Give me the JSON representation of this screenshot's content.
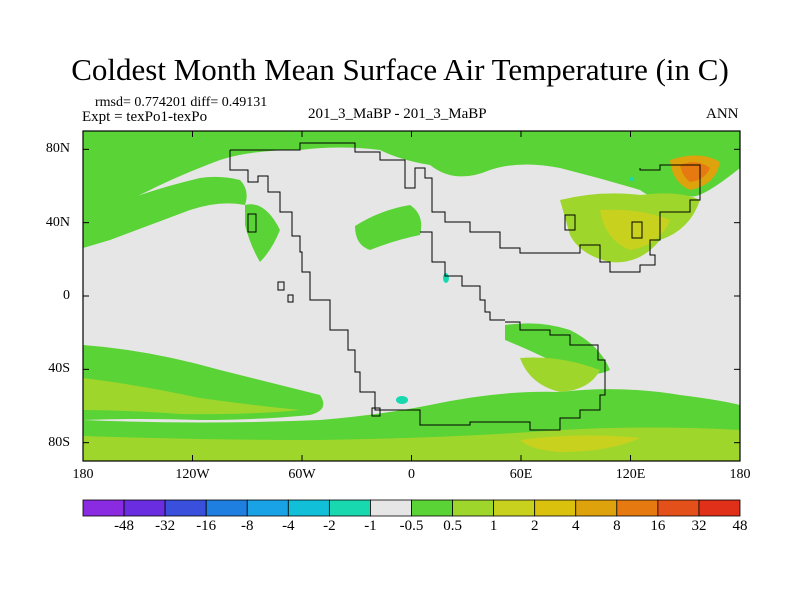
{
  "title": "Coldest Month Mean Surface Air Temperature (in C)",
  "stats": "rmsd= 0.774201 diff= 0.49131",
  "expt": "Expt = texPo1-texPo",
  "comparison": "201_3_MaBP - 201_3_MaBP",
  "season": "ANN",
  "map": {
    "x_ticks": [
      "180",
      "120W",
      "60W",
      "0",
      "60E",
      "120E",
      "180"
    ],
    "x_tick_lon": [
      -180,
      -120,
      -60,
      0,
      60,
      120,
      180
    ],
    "y_ticks": [
      "80N",
      "40N",
      "0",
      "40S",
      "80S"
    ],
    "y_tick_lat": [
      80,
      40,
      0,
      -40,
      -80
    ]
  },
  "colorbar": {
    "colors": [
      "#8a2be2",
      "#6a2ee0",
      "#3a50dc",
      "#1f7fe0",
      "#1aa2e6",
      "#12bfd8",
      "#18d8b0",
      "#e6e6e6",
      "#5ad336",
      "#9ed62c",
      "#c8d21e",
      "#d9c10e",
      "#dea20c",
      "#e67a10",
      "#e4501a",
      "#e0301a"
    ],
    "labels": [
      "-48",
      "-32",
      "-16",
      "-8",
      "-4",
      "-2",
      "-1",
      "-0.5",
      "0.5",
      "1",
      "2",
      "4",
      "8",
      "16",
      "32",
      "48"
    ]
  }
}
